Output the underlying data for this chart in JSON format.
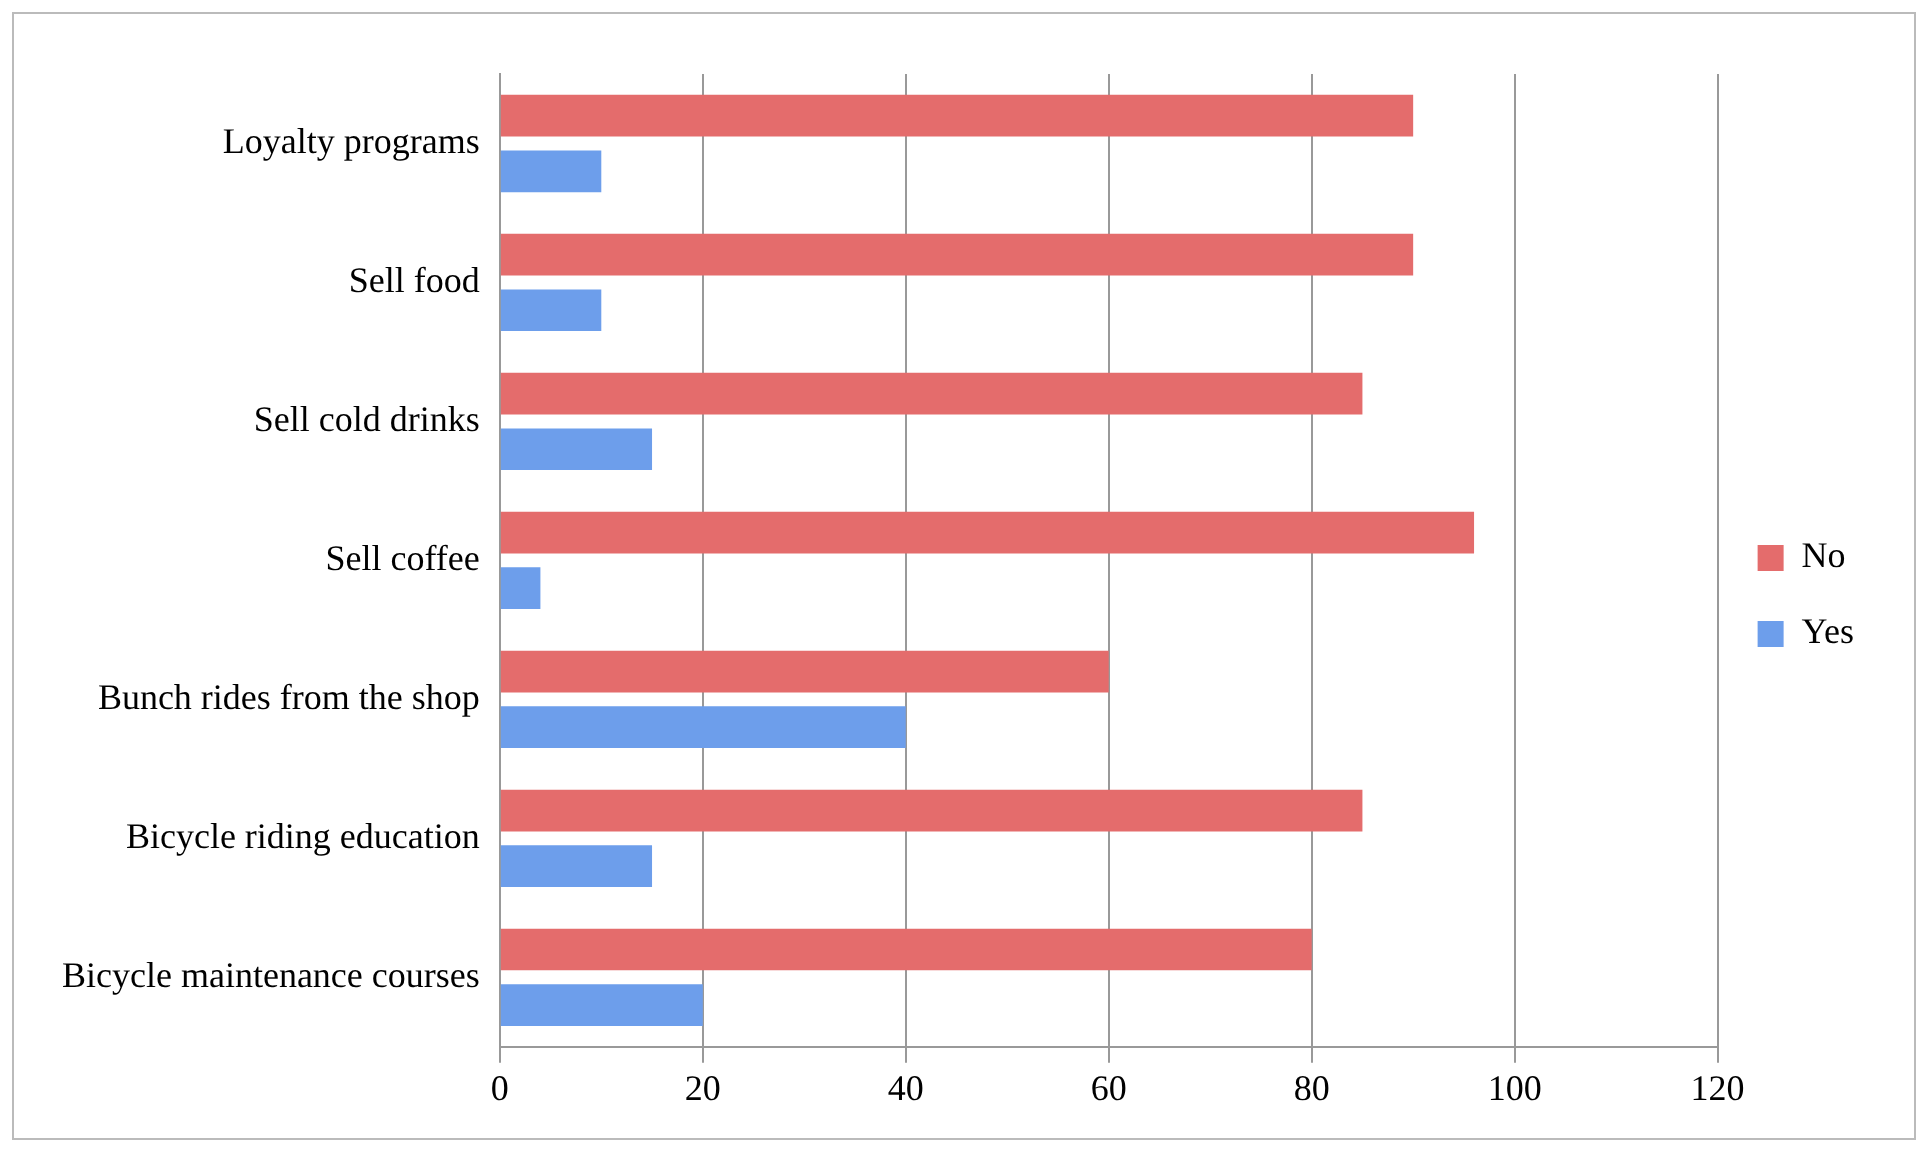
{
  "chart_data": {
    "type": "bar",
    "orientation": "horizontal",
    "categories": [
      "Loyalty programs",
      "Sell food",
      "Sell cold drinks",
      "Sell coffee",
      "Bunch rides from the shop",
      "Bicycle riding education",
      "Bicycle maintenance courses"
    ],
    "series": [
      {
        "name": "No",
        "color": "#e46c6c",
        "values": [
          90,
          90,
          85,
          96,
          60,
          85,
          80
        ]
      },
      {
        "name": "Yes",
        "color": "#6d9eeb",
        "values": [
          10,
          10,
          15,
          4,
          40,
          15,
          20
        ]
      }
    ],
    "xlim": [
      0,
      120
    ],
    "xticks": [
      0,
      20,
      40,
      60,
      80,
      100,
      120
    ],
    "grid": "x",
    "legend": "right"
  }
}
